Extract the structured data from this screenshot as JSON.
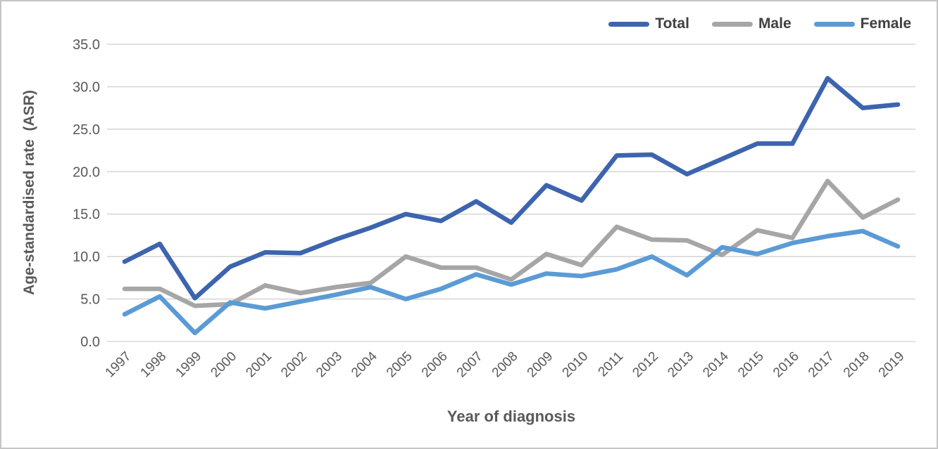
{
  "figure": {
    "kind": "excel-style line chart screenshot"
  },
  "colors": {
    "series_total": "#3D64AE",
    "series_male": "#A6A6A6",
    "series_female": "#5B9BD5",
    "gridline": "#D8D8D8",
    "axis_text": "#595959",
    "legend_text": "#404040",
    "figure_border": "#C5C5C5",
    "background": "#FFFFFF"
  },
  "chart_data": {
    "type": "line",
    "title": "",
    "xlabel": "Year of diagnosis",
    "ylabel": "Age-standardised rate  (ASR)",
    "x": [
      "1997",
      "1998",
      "1999",
      "2000",
      "2001",
      "2002",
      "2003",
      "2004",
      "2005",
      "2006",
      "2007",
      "2008",
      "2009",
      "2010",
      "2011",
      "2012",
      "2013",
      "2014",
      "2015",
      "2016",
      "2017",
      "2018",
      "2019"
    ],
    "series": [
      {
        "name": "Total",
        "color": "#3D64AE",
        "values": [
          9.4,
          11.5,
          5.1,
          8.8,
          10.5,
          10.4,
          12.0,
          13.4,
          15.0,
          14.2,
          16.5,
          14.0,
          18.4,
          16.6,
          21.9,
          22.0,
          19.7,
          21.5,
          23.3,
          23.3,
          31.0,
          27.5,
          27.9
        ]
      },
      {
        "name": "Male",
        "color": "#A6A6A6",
        "values": [
          6.2,
          6.2,
          4.2,
          4.4,
          6.6,
          5.7,
          6.4,
          6.9,
          10.0,
          8.7,
          8.7,
          7.3,
          10.3,
          9.0,
          13.5,
          12.0,
          11.9,
          10.2,
          13.1,
          12.2,
          18.9,
          14.6,
          16.7
        ]
      },
      {
        "name": "Female",
        "color": "#5B9BD5",
        "values": [
          3.2,
          5.3,
          1.0,
          4.6,
          3.9,
          4.7,
          5.5,
          6.4,
          5.0,
          6.2,
          7.9,
          6.7,
          8.0,
          7.7,
          8.5,
          10.0,
          7.8,
          11.1,
          10.3,
          11.6,
          12.4,
          13.0,
          11.2
        ]
      }
    ],
    "ylim": [
      0,
      35
    ],
    "y_ticks": [
      "0.0",
      "5.0",
      "10.0",
      "15.0",
      "20.0",
      "25.0",
      "30.0",
      "35.0"
    ],
    "grid": "horizontal",
    "legend_position": "top-right",
    "legend_entries": [
      "Total",
      "Male",
      "Female"
    ]
  }
}
